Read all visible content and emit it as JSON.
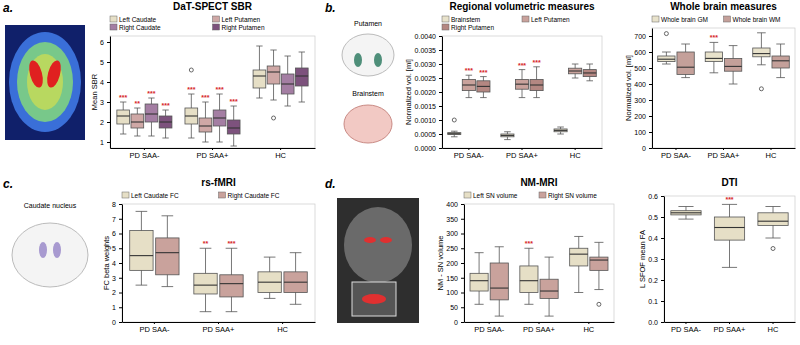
{
  "panels": {
    "labels": [
      "a.",
      "b.",
      "c.",
      "d."
    ],
    "illustrations": [
      "Putamen",
      "Brainstem",
      "Caudate nucleus"
    ]
  },
  "chart_data": [
    {
      "type": "box",
      "title": "DaT-SPECT SBR",
      "y_label": "Mean SBR",
      "categories": [
        "PD SAA-",
        "PD SAA+",
        "HC"
      ],
      "ylim": [
        0.7,
        6.3
      ],
      "yticks": [
        1,
        2,
        3,
        4,
        5,
        6
      ],
      "legend": "top",
      "series": [
        {
          "name": "Left Caudate",
          "color": "#e6dfc6",
          "q1": [
            1.9,
            1.9,
            3.7
          ],
          "median": [
            2.3,
            2.3,
            4.3
          ],
          "q3": [
            2.6,
            2.7,
            4.6
          ],
          "whisker_low": [
            1.4,
            1.2,
            3.2
          ],
          "whisker_high": [
            3.0,
            3.4,
            5.8
          ],
          "outliers": [
            [],
            [
              4.6
            ],
            []
          ],
          "significance": [
            "***",
            "***",
            null
          ]
        },
        {
          "name": "Left Putamen",
          "color": "#cfa8a6",
          "q1": [
            1.7,
            1.5,
            3.9
          ],
          "median": [
            2.0,
            1.8,
            4.5
          ],
          "q3": [
            2.4,
            2.2,
            4.8
          ],
          "whisker_low": [
            1.3,
            1.0,
            3.1
          ],
          "whisker_high": [
            2.7,
            3.0,
            5.6
          ],
          "outliers": [
            [],
            [],
            [
              2.2
            ]
          ],
          "significance": [
            "**",
            "***",
            null
          ]
        },
        {
          "name": "Right Caudate",
          "color": "#a47ea3",
          "q1": [
            2.0,
            1.8,
            3.4
          ],
          "median": [
            2.4,
            2.2,
            3.9
          ],
          "q3": [
            2.9,
            2.6,
            4.4
          ],
          "whisker_low": [
            1.3,
            1.0,
            2.8
          ],
          "whisker_high": [
            3.2,
            3.4,
            5.3
          ],
          "outliers": [
            [],
            [],
            []
          ],
          "significance": [
            "***",
            "***",
            null
          ]
        },
        {
          "name": "Right Putamen",
          "color": "#7d527d",
          "q1": [
            1.7,
            1.4,
            3.8
          ],
          "median": [
            2.0,
            1.7,
            4.3
          ],
          "q3": [
            2.3,
            2.1,
            4.7
          ],
          "whisker_low": [
            1.2,
            0.8,
            3.0
          ],
          "whisker_high": [
            2.6,
            2.8,
            5.5
          ],
          "outliers": [
            [],
            [],
            []
          ],
          "significance": [
            "***",
            "***",
            null
          ]
        }
      ]
    },
    {
      "type": "box",
      "title": "Regional volumetric measures",
      "y_label": "Normalized vol. [ml]",
      "categories": [
        "PD SAA-",
        "PD SAA+",
        "HC"
      ],
      "ylim": [
        0,
        0.004
      ],
      "yticks": [
        {
          "value": 0,
          "label": "0.0000"
        },
        {
          "value": 0.0005,
          "label": "0.0005"
        },
        {
          "value": 0.001,
          "label": "0.0010"
        },
        {
          "value": 0.0015,
          "label": "0.0015"
        },
        {
          "value": 0.002,
          "label": "0.0020"
        },
        {
          "value": 0.0025,
          "label": "0.0025"
        },
        {
          "value": 0.003,
          "label": "0.0030"
        },
        {
          "value": 0.0035,
          "label": "0.0035"
        },
        {
          "value": 0.004,
          "label": "0.0040"
        }
      ],
      "legend": "top",
      "series": [
        {
          "name": "Brainstem",
          "color": "#e8e2cb",
          "q1": [
            0.00048,
            0.0004,
            0.00058
          ],
          "median": [
            0.00051,
            0.00045,
            0.00063
          ],
          "q3": [
            0.00055,
            0.0005,
            0.00068
          ],
          "whisker_low": [
            0.0004,
            0.0003,
            0.0005
          ],
          "whisker_high": [
            0.0006,
            0.00058,
            0.00075
          ],
          "outliers": [
            [
              0.001
            ],
            [],
            []
          ],
          "significance": [
            null,
            null,
            null
          ]
        },
        {
          "name": "Left Putamen",
          "color": "#c9a29c",
          "q1": [
            0.00205,
            0.0021,
            0.00265
          ],
          "median": [
            0.00225,
            0.00228,
            0.00275
          ],
          "q3": [
            0.00245,
            0.00245,
            0.00285
          ],
          "whisker_low": [
            0.0018,
            0.0018,
            0.0025
          ],
          "whisker_high": [
            0.0026,
            0.0028,
            0.003
          ],
          "outliers": [
            [],
            [],
            []
          ],
          "significance": [
            "***",
            "***",
            null
          ]
        },
        {
          "name": "Right Putamen",
          "color": "#b48782",
          "q1": [
            0.002,
            0.00205,
            0.00255
          ],
          "median": [
            0.0022,
            0.00225,
            0.00268
          ],
          "q3": [
            0.0024,
            0.00245,
            0.0028
          ],
          "whisker_low": [
            0.0018,
            0.0018,
            0.0024
          ],
          "whisker_high": [
            0.00255,
            0.0029,
            0.003
          ],
          "outliers": [
            [],
            [],
            []
          ],
          "significance": [
            "***",
            "***",
            null
          ]
        }
      ]
    },
    {
      "type": "box",
      "title": "Whole brain measures",
      "y_label": "Normalized vol. [ml]",
      "categories": [
        "PD SAA-",
        "PD SAA+",
        "HC"
      ],
      "ylim": [
        0,
        750
      ],
      "yticks": [
        0,
        100,
        200,
        300,
        400,
        500,
        600,
        700
      ],
      "legend": "top",
      "series": [
        {
          "name": "Whole brain GM",
          "color": "#e8e2cb",
          "q1": [
            540,
            540,
            570
          ],
          "median": [
            555,
            560,
            590
          ],
          "q3": [
            575,
            600,
            625
          ],
          "whisker_low": [
            525,
            470,
            520
          ],
          "whisker_high": [
            600,
            660,
            720
          ],
          "outliers": [
            [
              715
            ],
            [],
            [
              370
            ]
          ],
          "significance": [
            null,
            "***",
            null
          ]
        },
        {
          "name": "Whole brain WM",
          "color": "#c4a09a",
          "q1": [
            460,
            480,
            500
          ],
          "median": [
            505,
            510,
            545
          ],
          "q3": [
            600,
            560,
            575
          ],
          "whisker_low": [
            440,
            400,
            440
          ],
          "whisker_high": [
            650,
            640,
            650
          ],
          "outliers": [
            [],
            [],
            []
          ],
          "significance": [
            null,
            null,
            null
          ]
        }
      ]
    },
    {
      "type": "box",
      "title": "rs-fMRI",
      "y_label": "FC beta weights",
      "categories": [
        "PD SAA-",
        "PD SAA+",
        "HC"
      ],
      "ylim": [
        0,
        8
      ],
      "yticks": [
        0,
        1,
        2,
        3,
        4,
        5,
        6,
        7,
        8
      ],
      "legend": "top",
      "series": [
        {
          "name": "Left Caudate FC",
          "color": "#e6dfc6",
          "q1": [
            3.5,
            1.9,
            2.0
          ],
          "median": [
            4.5,
            2.5,
            2.7
          ],
          "q3": [
            6.2,
            3.3,
            3.4
          ],
          "whisker_low": [
            2.5,
            0.7,
            1.6
          ],
          "whisker_high": [
            7.5,
            5.0,
            4.4
          ],
          "outliers": [
            [],
            [],
            []
          ],
          "significance": [
            null,
            "**",
            null
          ]
        },
        {
          "name": "Right Caudate FC",
          "color": "#c9a29c",
          "q1": [
            3.2,
            1.7,
            2.0
          ],
          "median": [
            4.7,
            2.6,
            2.7
          ],
          "q3": [
            5.7,
            3.2,
            3.4
          ],
          "whisker_low": [
            2.4,
            0.7,
            1.2
          ],
          "whisker_high": [
            7.2,
            5.0,
            4.7
          ],
          "outliers": [
            [],
            [],
            []
          ],
          "significance": [
            null,
            "***",
            null
          ]
        }
      ]
    },
    {
      "type": "box",
      "title": "NM-MRI",
      "y_label": "NM - SN volume",
      "categories": [
        "PD SAA-",
        "PD SAA+",
        "HC"
      ],
      "ylim": [
        0,
        400
      ],
      "yticks": [
        0,
        50,
        100,
        150,
        200,
        250,
        300,
        350,
        400
      ],
      "legend": "top",
      "series": [
        {
          "name": "Left SN volume",
          "color": "#e6dfc6",
          "q1": [
            105,
            100,
            190
          ],
          "median": [
            140,
            140,
            230
          ],
          "q3": [
            165,
            190,
            250
          ],
          "whisker_low": [
            60,
            60,
            100
          ],
          "whisker_high": [
            235,
            250,
            290
          ],
          "outliers": [
            [],
            [],
            []
          ],
          "significance": [
            null,
            "***",
            null
          ]
        },
        {
          "name": "Right SN volume",
          "color": "#c9a29c",
          "q1": [
            75,
            80,
            175
          ],
          "median": [
            115,
            105,
            210
          ],
          "q3": [
            200,
            145,
            220
          ],
          "whisker_low": [
            20,
            20,
            110
          ],
          "whisker_high": [
            255,
            220,
            270
          ],
          "outliers": [
            [],
            [],
            [
              60
            ]
          ],
          "significance": [
            null,
            null,
            null
          ]
        }
      ]
    },
    {
      "type": "box",
      "title": "DTI",
      "y_label": "L SFOF mean FA",
      "categories": [
        "PD SAA-",
        "PD SAA+",
        "HC"
      ],
      "ylim": [
        0,
        0.6
      ],
      "yticks": [
        {
          "value": 0,
          "label": "0.0"
        },
        {
          "value": 0.1,
          "label": "0.1"
        },
        {
          "value": 0.2,
          "label": "0.2"
        },
        {
          "value": 0.3,
          "label": "0.3"
        },
        {
          "value": 0.4,
          "label": "0.4"
        },
        {
          "value": 0.5,
          "label": "0.5"
        },
        {
          "value": 0.6,
          "label": "0.6"
        }
      ],
      "series": [
        {
          "color": "#e6dfc6",
          "q1": [
            0.51,
            0.39,
            0.46
          ],
          "median": [
            0.52,
            0.45,
            0.48
          ],
          "q3": [
            0.53,
            0.5,
            0.52
          ],
          "whisker_low": [
            0.49,
            0.26,
            0.4
          ],
          "whisker_high": [
            0.55,
            0.56,
            0.55
          ],
          "outliers": [
            [],
            [],
            [
              0.35
            ]
          ],
          "significance": [
            null,
            "***",
            null
          ]
        }
      ]
    }
  ]
}
